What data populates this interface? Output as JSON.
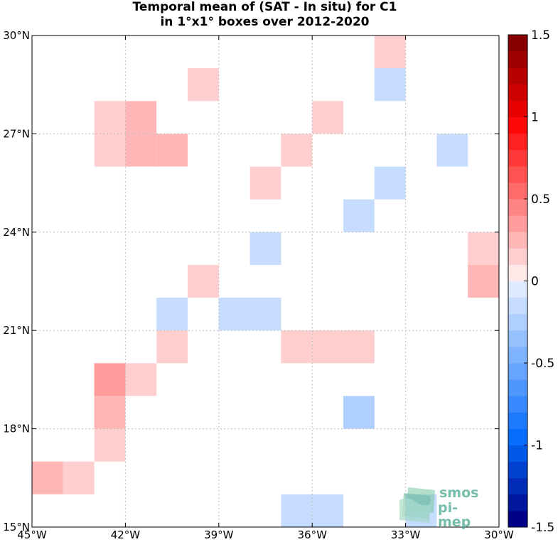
{
  "title": {
    "line1": "Temporal mean of (SAT - In situ) for C1",
    "line2": "in 1°x1° boxes over 2012-2020"
  },
  "watermark": {
    "line1": "smos",
    "line2": "pi-mep",
    "icon": "smos-pi-mep-logo-icon"
  },
  "chart_data": {
    "type": "heatmap",
    "title": "Temporal mean of (SAT - In situ) for C1 in 1°x1° boxes over 2012-2020",
    "x_range": [
      -45,
      -30
    ],
    "y_range": [
      15,
      30
    ],
    "x_ticks": [
      {
        "value": -45,
        "label": "45°W"
      },
      {
        "value": -42,
        "label": "42°W"
      },
      {
        "value": -39,
        "label": "39°W"
      },
      {
        "value": -36,
        "label": "36°W"
      },
      {
        "value": -33,
        "label": "33°W"
      },
      {
        "value": -30,
        "label": "30°W"
      }
    ],
    "y_ticks": [
      {
        "value": 15,
        "label": "15°N"
      },
      {
        "value": 18,
        "label": "18°N"
      },
      {
        "value": 21,
        "label": "21°N"
      },
      {
        "value": 24,
        "label": "24°N"
      },
      {
        "value": 27,
        "label": "27°N"
      },
      {
        "value": 30,
        "label": "30°N"
      }
    ],
    "grid": true,
    "cell_size_deg": 1,
    "colorbar": {
      "min": -1.5,
      "max": 1.5,
      "step": 0.1,
      "ticks": [
        {
          "value": 1.5,
          "label": "1.5"
        },
        {
          "value": 1,
          "label": "1"
        },
        {
          "value": 0.5,
          "label": "0.5"
        },
        {
          "value": 0,
          "label": "0"
        },
        {
          "value": -0.5,
          "label": "-0.5"
        },
        {
          "value": -1,
          "label": "-1"
        },
        {
          "value": -1.5,
          "label": "-1.5"
        }
      ]
    },
    "cells": [
      {
        "lon": -34,
        "lat": 29,
        "value": 0.15
      },
      {
        "lon": -34,
        "lat": 28,
        "value": -0.15
      },
      {
        "lon": -40,
        "lat": 28,
        "value": 0.15
      },
      {
        "lon": -43,
        "lat": 27,
        "value": 0.15
      },
      {
        "lon": -42,
        "lat": 27,
        "value": 0.25
      },
      {
        "lon": -36,
        "lat": 27,
        "value": 0.15
      },
      {
        "lon": -43,
        "lat": 26,
        "value": 0.15
      },
      {
        "lon": -42,
        "lat": 26,
        "value": 0.25
      },
      {
        "lon": -41,
        "lat": 26,
        "value": 0.25
      },
      {
        "lon": -37,
        "lat": 26,
        "value": 0.15
      },
      {
        "lon": -32,
        "lat": 26,
        "value": -0.15
      },
      {
        "lon": -38,
        "lat": 25,
        "value": 0.15
      },
      {
        "lon": -34,
        "lat": 25,
        "value": -0.15
      },
      {
        "lon": -35,
        "lat": 24,
        "value": -0.15
      },
      {
        "lon": -38,
        "lat": 23,
        "value": -0.15
      },
      {
        "lon": -31,
        "lat": 23,
        "value": 0.15
      },
      {
        "lon": -40,
        "lat": 22,
        "value": 0.15
      },
      {
        "lon": -31,
        "lat": 22,
        "value": 0.25
      },
      {
        "lon": -41,
        "lat": 21,
        "value": -0.15
      },
      {
        "lon": -39,
        "lat": 21,
        "value": -0.15
      },
      {
        "lon": -38,
        "lat": 21,
        "value": -0.15
      },
      {
        "lon": -41,
        "lat": 20,
        "value": 0.15
      },
      {
        "lon": -37,
        "lat": 20,
        "value": 0.15
      },
      {
        "lon": -36,
        "lat": 20,
        "value": 0.15
      },
      {
        "lon": -35,
        "lat": 20,
        "value": 0.15
      },
      {
        "lon": -43,
        "lat": 19,
        "value": 0.35
      },
      {
        "lon": -42,
        "lat": 19,
        "value": 0.15
      },
      {
        "lon": -43,
        "lat": 18,
        "value": 0.25
      },
      {
        "lon": -35,
        "lat": 18,
        "value": -0.25
      },
      {
        "lon": -43,
        "lat": 17,
        "value": 0.15
      },
      {
        "lon": -45,
        "lat": 16,
        "value": 0.25
      },
      {
        "lon": -44,
        "lat": 16,
        "value": 0.15
      },
      {
        "lon": -37,
        "lat": 15,
        "value": -0.15
      },
      {
        "lon": -36,
        "lat": 15,
        "value": -0.15
      },
      {
        "lon": -33,
        "lat": 15,
        "value": -0.15
      }
    ]
  }
}
